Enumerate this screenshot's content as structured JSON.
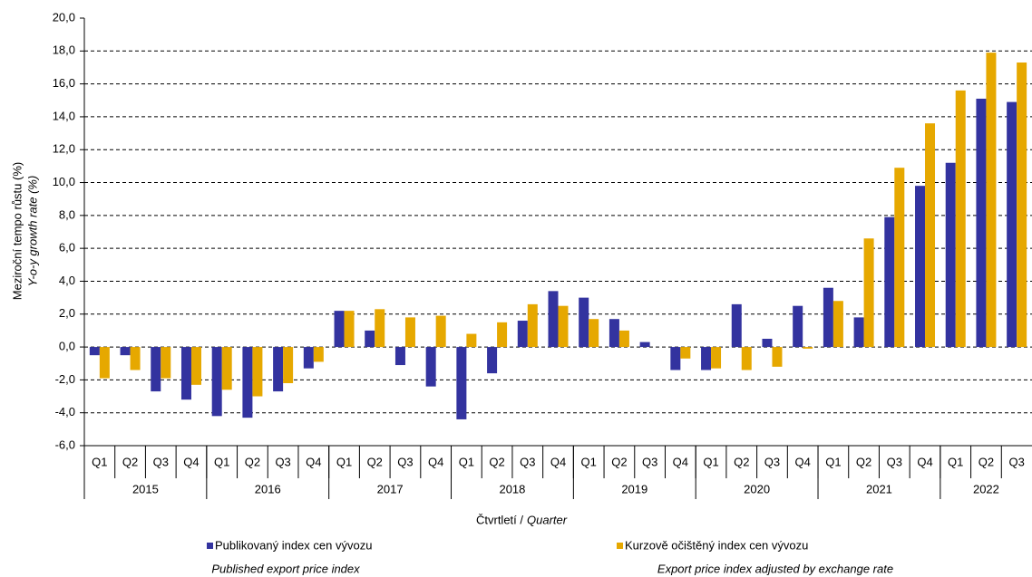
{
  "chart_data": {
    "type": "bar",
    "y_label": "Meziroční tempo růstu (%)",
    "y_label_en": "Y-o-y growth rate (%)",
    "x_label": "Čtvrtletí /",
    "x_label_en": "Quarter",
    "groups": [
      {
        "label": "2015",
        "categories": [
          "Q1",
          "Q2",
          "Q3",
          "Q4"
        ]
      },
      {
        "label": "2016",
        "categories": [
          "Q1",
          "Q2",
          "Q3",
          "Q4"
        ]
      },
      {
        "label": "2017",
        "categories": [
          "Q1",
          "Q2",
          "Q3",
          "Q4"
        ]
      },
      {
        "label": "2018",
        "categories": [
          "Q1",
          "Q2",
          "Q3",
          "Q4"
        ]
      },
      {
        "label": "2019",
        "categories": [
          "Q1",
          "Q2",
          "Q3",
          "Q4"
        ]
      },
      {
        "label": "2020",
        "categories": [
          "Q1",
          "Q2",
          "Q3",
          "Q4"
        ]
      },
      {
        "label": "2021",
        "categories": [
          "Q1",
          "Q2",
          "Q3",
          "Q4"
        ]
      },
      {
        "label": "2022",
        "categories": [
          "Q1",
          "Q2",
          "Q3"
        ]
      }
    ],
    "series": [
      {
        "name": "Publikovaný index cen vývozu",
        "name_en": "Published export price index",
        "color": "#33339f",
        "values": [
          -0.5,
          -0.5,
          -2.7,
          -3.2,
          -4.2,
          -4.3,
          -2.7,
          -1.3,
          2.2,
          1.0,
          -1.1,
          -2.4,
          -4.4,
          -1.6,
          1.6,
          3.4,
          3.0,
          1.7,
          0.3,
          -1.4,
          -1.4,
          2.6,
          0.5,
          2.5,
          3.6,
          1.8,
          7.9,
          9.8,
          11.2,
          15.1,
          14.9
        ]
      },
      {
        "name": "Kurzově očištěný index cen vývozu",
        "name_en": "Export price index adjusted by exchange rate",
        "color": "#e6a800",
        "values": [
          -1.9,
          -1.4,
          -1.9,
          -2.3,
          -2.6,
          -3.0,
          -2.2,
          -0.9,
          2.2,
          2.3,
          1.8,
          1.9,
          0.8,
          1.5,
          2.6,
          2.5,
          1.7,
          1.0,
          0.0,
          -0.7,
          -1.3,
          -1.4,
          -1.2,
          -0.1,
          2.8,
          6.6,
          10.9,
          13.6,
          15.6,
          17.9,
          17.3
        ]
      }
    ],
    "ylim": [
      -6,
      20
    ],
    "yticks": [
      {
        "value": -6,
        "label": "-6,0"
      },
      {
        "value": -4,
        "label": "-4,0"
      },
      {
        "value": -2,
        "label": "-2,0"
      },
      {
        "value": 0,
        "label": "0,0"
      },
      {
        "value": 2,
        "label": "2,0"
      },
      {
        "value": 4,
        "label": "4,0"
      },
      {
        "value": 6,
        "label": "6,0"
      },
      {
        "value": 8,
        "label": "8,0"
      },
      {
        "value": 10,
        "label": "10,0"
      },
      {
        "value": 12,
        "label": "12,0"
      },
      {
        "value": 14,
        "label": "14,0"
      },
      {
        "value": 16,
        "label": "16,0"
      },
      {
        "value": 18,
        "label": "18,0"
      },
      {
        "value": 20,
        "label": "20,0"
      }
    ],
    "grid": true
  }
}
